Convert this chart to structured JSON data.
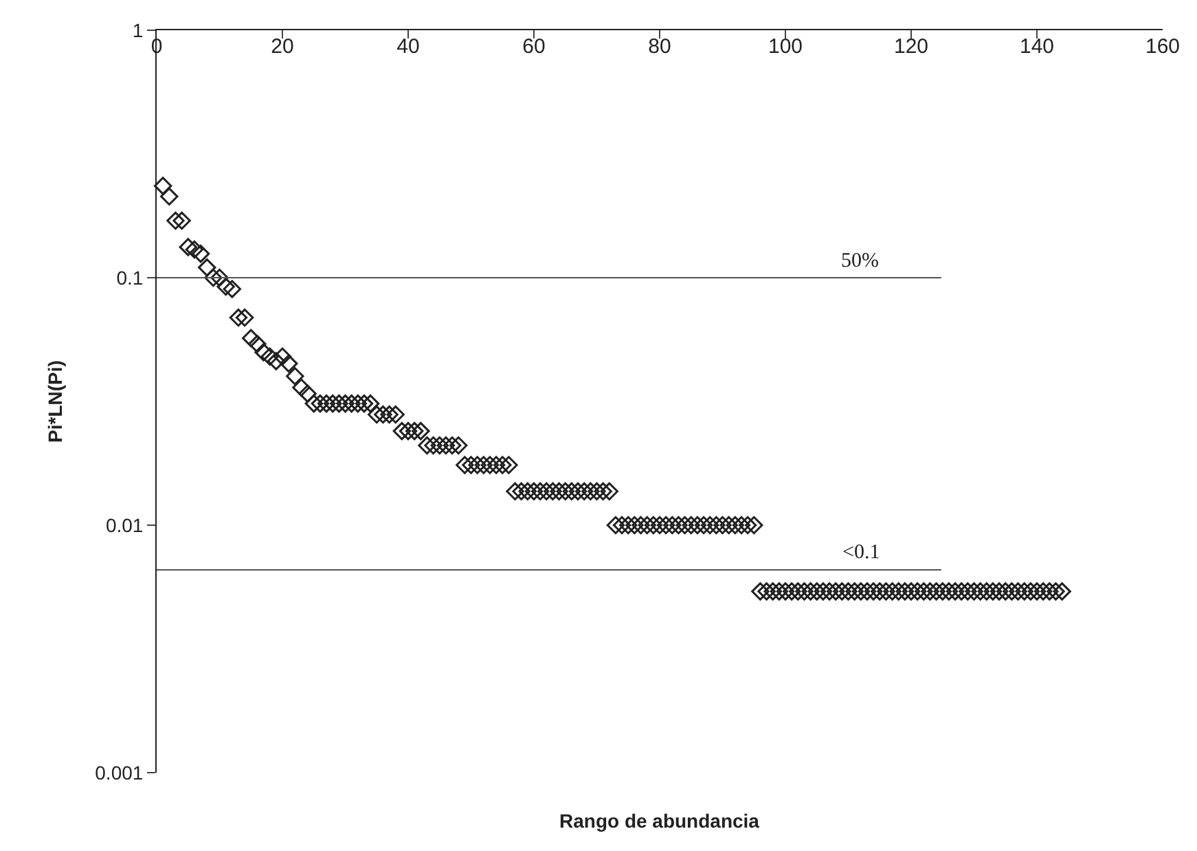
{
  "chart_data": {
    "type": "scatter",
    "xlabel": "Rango de abundancia",
    "ylabel": "Pi*LN(Pi)",
    "x": [
      1,
      2,
      3,
      4,
      5,
      6,
      7,
      8,
      9,
      10,
      11,
      12,
      13,
      14,
      15,
      16,
      17,
      18,
      19,
      20,
      21,
      22,
      23,
      24,
      25,
      26,
      27,
      28,
      29,
      30,
      31,
      32,
      33,
      34,
      35,
      36,
      37,
      38,
      39,
      40,
      41,
      42,
      43,
      44,
      45,
      46,
      47,
      48,
      49,
      50,
      51,
      52,
      53,
      54,
      55,
      56,
      57,
      58,
      59,
      60,
      61,
      62,
      63,
      64,
      65,
      66,
      67,
      68,
      69,
      70,
      71,
      72,
      73,
      74,
      75,
      76,
      77,
      78,
      79,
      80,
      81,
      82,
      83,
      84,
      85,
      86,
      87,
      88,
      89,
      90,
      91,
      92,
      93,
      94,
      95,
      96,
      97,
      98,
      99,
      100,
      101,
      102,
      103,
      104,
      105,
      106,
      107,
      108,
      109,
      110,
      111,
      112,
      113,
      114,
      115,
      116,
      117,
      118,
      119,
      120,
      121,
      122,
      123,
      124,
      125,
      126,
      127,
      128,
      129,
      130,
      131,
      132,
      133,
      134,
      135,
      136,
      137,
      138,
      139,
      140,
      141,
      142,
      143,
      144
    ],
    "values": [
      0.235,
      0.213,
      0.17,
      0.17,
      0.133,
      0.13,
      0.125,
      0.11,
      0.1,
      0.1,
      0.092,
      0.09,
      0.069,
      0.069,
      0.057,
      0.054,
      0.05,
      0.048,
      0.046,
      0.048,
      0.045,
      0.04,
      0.036,
      0.034,
      0.031,
      0.031,
      0.031,
      0.031,
      0.031,
      0.031,
      0.031,
      0.031,
      0.031,
      0.031,
      0.028,
      0.028,
      0.028,
      0.028,
      0.024,
      0.024,
      0.024,
      0.024,
      0.021,
      0.021,
      0.021,
      0.021,
      0.021,
      0.021,
      0.0175,
      0.0175,
      0.0175,
      0.0175,
      0.0175,
      0.0175,
      0.0175,
      0.0175,
      0.0137,
      0.0137,
      0.0137,
      0.0137,
      0.0137,
      0.0137,
      0.0137,
      0.0137,
      0.0137,
      0.0137,
      0.0137,
      0.0137,
      0.0137,
      0.0137,
      0.0137,
      0.0137,
      0.01,
      0.01,
      0.01,
      0.01,
      0.01,
      0.01,
      0.01,
      0.01,
      0.01,
      0.01,
      0.01,
      0.01,
      0.01,
      0.01,
      0.01,
      0.01,
      0.01,
      0.01,
      0.01,
      0.01,
      0.01,
      0.01,
      0.01,
      0.0054,
      0.0054,
      0.0054,
      0.0054,
      0.0054,
      0.0054,
      0.0054,
      0.0054,
      0.0054,
      0.0054,
      0.0054,
      0.0054,
      0.0054,
      0.0054,
      0.0054,
      0.0054,
      0.0054,
      0.0054,
      0.0054,
      0.0054,
      0.0054,
      0.0054,
      0.0054,
      0.0054,
      0.0054,
      0.0054,
      0.0054,
      0.0054,
      0.0054,
      0.0054,
      0.0054,
      0.0054,
      0.0054,
      0.0054,
      0.0054,
      0.0054,
      0.0054,
      0.0054,
      0.0054,
      0.0054,
      0.0054,
      0.0054,
      0.0054,
      0.0054,
      0.0054,
      0.0054,
      0.0054,
      0.0054,
      0.0054
    ],
    "color": "#222222",
    "marker": "diamond",
    "log": "y",
    "xlim": [
      0,
      160
    ],
    "xticks": [
      0,
      20,
      40,
      60,
      80,
      100,
      120,
      140,
      160
    ],
    "ylim": [
      0.001,
      1
    ],
    "yticks": [
      1,
      0.1,
      0.01,
      0.001
    ],
    "ref_lines": [
      {
        "axis": "y",
        "value": 0.1,
        "color": "#555555"
      },
      {
        "axis": "y",
        "value": 0.0066,
        "color": "#555555"
      }
    ],
    "annotations": [
      {
        "text": "50%",
        "x": 112,
        "y": 0.1
      },
      {
        "text": "<0.1",
        "x": 112,
        "y": 0.0066
      }
    ]
  }
}
